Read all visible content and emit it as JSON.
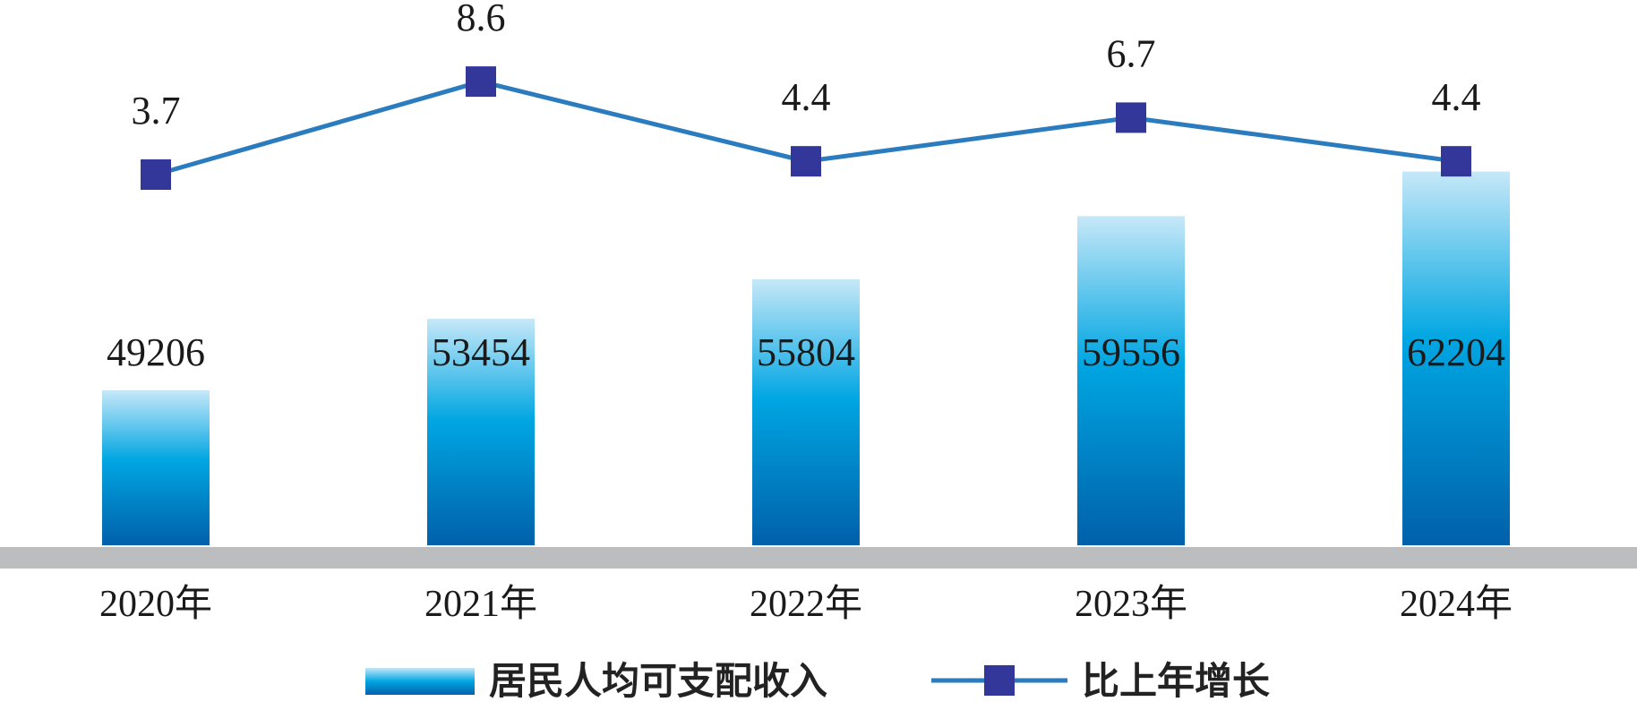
{
  "chart_data": {
    "type": "bar",
    "categories": [
      "2020年",
      "2021年",
      "2022年",
      "2023年",
      "2024年"
    ],
    "series": [
      {
        "name": "居民人均可支配收入",
        "type": "bar",
        "values": [
          49206,
          53454,
          55804,
          59556,
          62204
        ],
        "color": "#0a6fba"
      },
      {
        "name": "比上年增长",
        "type": "line",
        "values": [
          3.7,
          8.6,
          4.4,
          6.7,
          4.4
        ],
        "color": "#2b7bbf",
        "marker_color": "#33379a"
      }
    ],
    "legend_position": "bottom",
    "grid": false,
    "baseline_color": "#bcbdbf"
  }
}
